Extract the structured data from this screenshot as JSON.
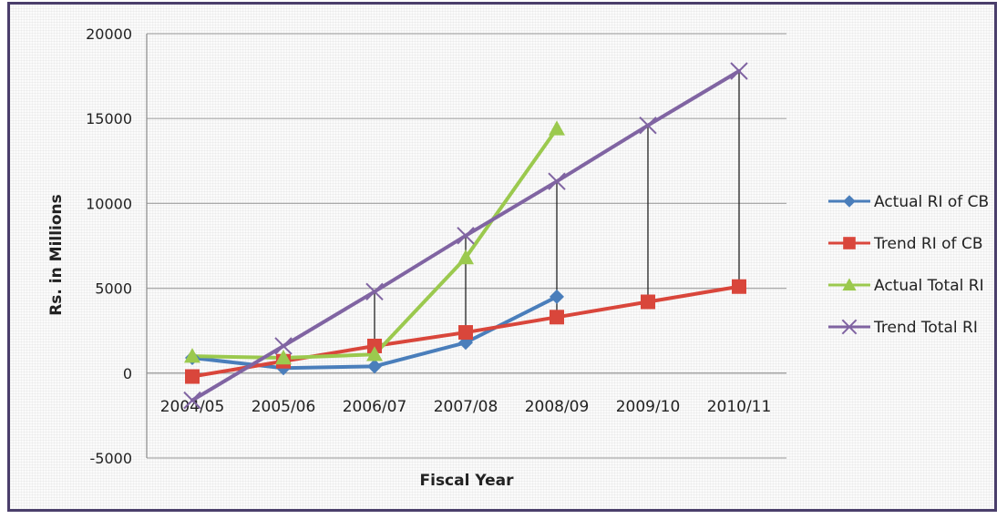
{
  "chart_data": {
    "type": "line",
    "title": "",
    "xlabel": "Fiscal Year",
    "ylabel": "Rs. in Millions",
    "categories": [
      "2004/05",
      "2005/06",
      "2006/07",
      "2007/08",
      "2008/09",
      "2009/10",
      "2010/11"
    ],
    "ylim": [
      -5000,
      20000
    ],
    "yticks": [
      -5000,
      0,
      5000,
      10000,
      15000,
      20000
    ],
    "grid": true,
    "legend_position": "right",
    "series": [
      {
        "name": "Actual RI of CB",
        "color": "#4a7ebb",
        "marker": "diamond",
        "values": [
          900,
          300,
          400,
          1800,
          4500,
          null,
          null
        ]
      },
      {
        "name": "Trend RI of CB",
        "color": "#d9463b",
        "marker": "square",
        "values": [
          -200,
          700,
          1600,
          2400,
          3300,
          4200,
          5100
        ]
      },
      {
        "name": "Actual Total RI",
        "color": "#9bc94e",
        "marker": "triangle",
        "values": [
          1000,
          900,
          1100,
          6800,
          14400,
          null,
          null
        ]
      },
      {
        "name": "Trend Total RI",
        "color": "#8064a2",
        "marker": "x",
        "values": [
          -1600,
          1600,
          4800,
          8100,
          11300,
          14600,
          17800
        ]
      }
    ],
    "drop_lines": {
      "color": "#222222",
      "from_series": "Trend Total RI",
      "to_series": "Trend RI of CB",
      "categories": [
        "2006/07",
        "2007/08",
        "2008/09",
        "2009/10",
        "2010/11"
      ]
    }
  }
}
